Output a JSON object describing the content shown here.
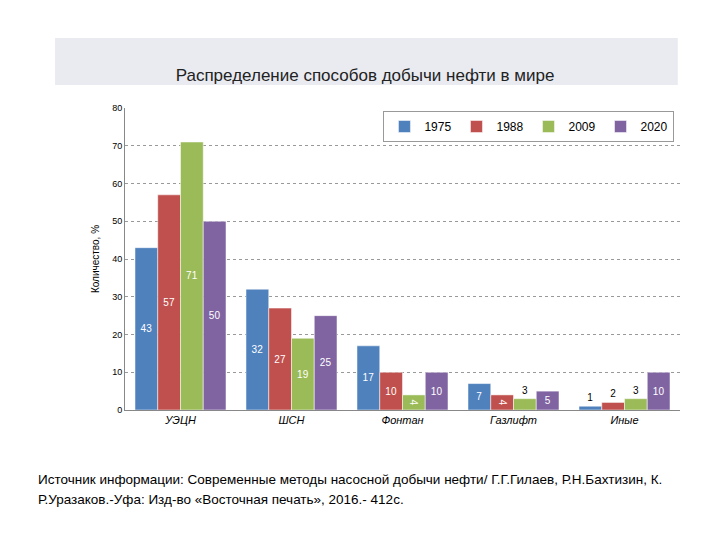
{
  "chart_data": {
    "type": "bar",
    "title": "Распределение способов добычи нефти в мире",
    "y_label": "Количество, %",
    "categories": [
      "УЭЦН",
      "ШСН",
      "Фонтан",
      "Газлифт",
      "Иные"
    ],
    "series": [
      {
        "name": "1975",
        "color": "#4f81bd",
        "values": [
          43,
          32,
          17,
          7,
          1
        ]
      },
      {
        "name": "1988",
        "color": "#c0504d",
        "values": [
          57,
          27,
          10,
          4,
          2
        ]
      },
      {
        "name": "2009",
        "color": "#9bbb59",
        "values": [
          71,
          19,
          4,
          3,
          3
        ]
      },
      {
        "name": "2020",
        "color": "#8064a2",
        "values": [
          50,
          25,
          10,
          5,
          10
        ]
      }
    ],
    "ylim": [
      0,
      80
    ],
    "yticks": [
      0,
      10,
      20,
      30,
      40,
      50,
      60,
      70,
      80
    ],
    "grid": true,
    "legend": "upper right",
    "data_labels": true,
    "source": "Источник информации: Современные методы насосной добычи нефти/ Г.Г.Гилаев, Р.Н.Бахтизин, К. Р.Уразаков.-Уфа: Изд-во «Восточная печать», 2016.- 412с."
  }
}
